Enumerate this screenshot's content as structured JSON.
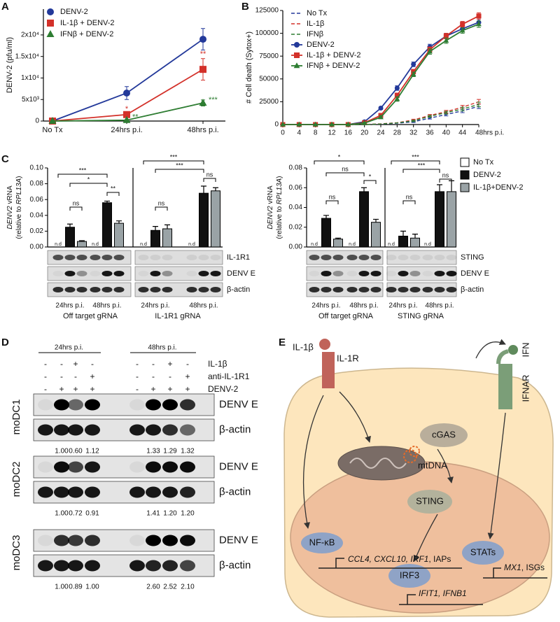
{
  "panel_labels": [
    "A",
    "B",
    "C",
    "D",
    "E"
  ],
  "chart_data": [
    {
      "type": "line",
      "y_label": "DENV-2 (pfu/ml)",
      "categories": [
        "No Tx",
        "24hrs p.i.",
        "48hrs p.i."
      ],
      "ylim": [
        0,
        26000
      ],
      "yticks": [
        0,
        {
          "value": 5000,
          "label": "5x10³"
        },
        {
          "value": 10000,
          "label": "1x10⁴"
        },
        {
          "value": 15000,
          "label": "1.5x10⁴"
        },
        {
          "value": 20000,
          "label": "2x10⁴"
        }
      ],
      "legend": "upper left",
      "series": [
        {
          "name": "DENV-2",
          "color": "#23399a",
          "marker": "circle",
          "values": [
            0,
            6500,
            19000
          ],
          "errors": [
            null,
            1500,
            2500
          ],
          "stars": [
            null,
            null,
            null
          ]
        },
        {
          "name": "IL-1β + DENV-2",
          "color": "#d3312a",
          "marker": "square",
          "values": [
            0,
            1500,
            12000
          ],
          "errors": [
            null,
            300,
            2500
          ],
          "stars": [
            null,
            "*",
            "**"
          ]
        },
        {
          "name": "IFNβ + DENV-2",
          "color": "#2e7d32",
          "marker": "triangle",
          "values": [
            0,
            200,
            4200
          ],
          "errors": [
            null,
            100,
            700
          ],
          "stars": [
            null,
            "**",
            "***"
          ]
        }
      ]
    },
    {
      "type": "line",
      "y_label": "# Cell death (Sytox+)",
      "x": [
        0,
        4,
        8,
        12,
        16,
        20,
        24,
        28,
        32,
        36,
        40,
        44,
        48
      ],
      "xlim": [
        0,
        48
      ],
      "xticks": [
        0,
        4,
        8,
        12,
        16,
        20,
        24,
        28,
        32,
        36,
        40,
        44,
        {
          "value": 48,
          "label": "48hrs p.i."
        }
      ],
      "ylim": [
        0,
        125000
      ],
      "yticks": [
        0,
        25000,
        50000,
        75000,
        100000,
        125000
      ],
      "legend": "upper left",
      "series": [
        {
          "name": "No Tx",
          "color": "#23399a",
          "dash": true,
          "values": [
            0,
            0,
            0,
            0,
            0,
            0,
            500,
            1500,
            3000,
            7000,
            11000,
            15000,
            20000
          ],
          "errors": [
            null,
            null,
            null,
            null,
            null,
            null,
            null,
            null,
            800,
            1000,
            1500,
            2000,
            2500
          ]
        },
        {
          "name": "IL-1β",
          "color": "#d3312a",
          "dash": true,
          "values": [
            0,
            0,
            0,
            0,
            0,
            0,
            800,
            2000,
            5000,
            10000,
            14000,
            19000,
            25000
          ],
          "errors": [
            null,
            null,
            null,
            null,
            null,
            null,
            null,
            null,
            800,
            1000,
            1500,
            2000,
            2500
          ]
        },
        {
          "name": "IFNβ",
          "color": "#2e7d32",
          "dash": true,
          "values": [
            0,
            0,
            0,
            0,
            0,
            0,
            600,
            1800,
            4000,
            9000,
            13000,
            17000,
            22000
          ],
          "errors": [
            null,
            null,
            null,
            null,
            null,
            null,
            null,
            null,
            800,
            1000,
            1500,
            2000,
            2500
          ]
        },
        {
          "name": "DENV-2",
          "color": "#23399a",
          "marker": "circle",
          "values": [
            0,
            0,
            0,
            0,
            0,
            3000,
            18000,
            40000,
            66000,
            85000,
            97000,
            105000,
            112000
          ],
          "errors": [
            null,
            null,
            null,
            null,
            null,
            1000,
            1500,
            2500,
            2500,
            3000,
            3000,
            3000,
            3500
          ]
        },
        {
          "name": "IL-1β + DENV-2",
          "color": "#d3312a",
          "marker": "square",
          "values": [
            0,
            0,
            0,
            0,
            0,
            2000,
            10000,
            32000,
            58000,
            82000,
            97000,
            110000,
            119000
          ],
          "errors": [
            null,
            null,
            null,
            null,
            null,
            1000,
            1500,
            2500,
            2500,
            3000,
            3000,
            3000,
            3500
          ]
        },
        {
          "name": "IFNβ + DENV-2",
          "color": "#2e7d32",
          "marker": "triangle",
          "values": [
            0,
            0,
            0,
            0,
            0,
            1500,
            8000,
            28000,
            55000,
            80000,
            92000,
            103000,
            110000
          ],
          "errors": [
            null,
            null,
            null,
            null,
            null,
            1000,
            1500,
            2500,
            2500,
            3000,
            3000,
            3000,
            3500
          ]
        }
      ]
    },
    {
      "type": "bar",
      "y_label": [
        [
          "DENV2",
          " vRNA"
        ],
        [
          "(relative to ",
          "RPL13A",
          ")"
        ]
      ],
      "categories": [
        "24hrs p.i.",
        "48hrs p.i.",
        "24hrs p.i.",
        "48hrs p.i."
      ],
      "groups": [
        "Off target gRNA",
        "IL-1R1 gRNA"
      ],
      "ylim": [
        0,
        0.1
      ],
      "yticks": [
        {
          "value": 0,
          "label": "0.00"
        },
        {
          "value": 0.02,
          "label": "0.02"
        },
        {
          "value": 0.04,
          "label": "0.04"
        },
        {
          "value": 0.06,
          "label": "0.06"
        },
        {
          "value": 0.08,
          "label": "0.08"
        },
        {
          "value": 0.1,
          "label": "0.10"
        }
      ],
      "series": [
        {
          "color": "#ffffff",
          "values": [
            null,
            null,
            null,
            null
          ],
          "value_labels": [
            "n.d",
            "n.d",
            "n.d",
            "n.d"
          ]
        },
        {
          "color": "#111111",
          "values": [
            0.025,
            0.056,
            0.021,
            0.068
          ],
          "errors": [
            0.004,
            0.002,
            0.005,
            0.009
          ]
        },
        {
          "color": "#9aa3a6",
          "values": [
            0.007,
            0.03,
            0.023,
            0.071
          ],
          "errors": [
            0.001,
            0.003,
            0.005,
            0.004
          ]
        }
      ],
      "brackets": [
        "***",
        "*",
        "**",
        "ns",
        "***",
        "***",
        "ns",
        "ns"
      ],
      "blot_rows": [
        "IL-1R1",
        "DENV E",
        "β-actin"
      ]
    },
    {
      "type": "bar",
      "y_label": [
        [
          "DENV2",
          " vRNA"
        ],
        [
          "(relative to ",
          "RPL13A",
          ")"
        ]
      ],
      "categories": [
        "24hrs p.i.",
        "48hrs p.i.",
        "24hrs p.i.",
        "48hrs p.i."
      ],
      "groups": [
        "Off target gRNA",
        "STING gRNA"
      ],
      "ylim": [
        0,
        0.08
      ],
      "yticks": [
        {
          "value": 0,
          "label": "0.00"
        },
        {
          "value": 0.02,
          "label": "0.02"
        },
        {
          "value": 0.04,
          "label": "0.04"
        },
        {
          "value": 0.06,
          "label": "0.06"
        },
        {
          "value": 0.08,
          "label": "0.08"
        }
      ],
      "legend": "right",
      "series": [
        {
          "name": "No Tx",
          "color": "#ffffff",
          "values": [
            null,
            null,
            null,
            null
          ],
          "value_labels": [
            "n.d",
            "n.d",
            "n.d",
            "n.d"
          ]
        },
        {
          "name": "DENV-2",
          "color": "#111111",
          "values": [
            0.029,
            0.056,
            0.011,
            0.056
          ],
          "errors": [
            0.003,
            0.004,
            0.005,
            0.007
          ]
        },
        {
          "name": "IL-1β+DENV-2",
          "color": "#9aa3a6",
          "values": [
            0.008,
            0.025,
            0.009,
            0.056
          ],
          "errors": [
            0.001,
            0.003,
            0.004,
            0.011
          ]
        }
      ],
      "brackets": [
        "*",
        "ns",
        "*",
        "ns",
        "***",
        "***",
        "ns",
        "ns"
      ],
      "blot_rows": [
        "STING",
        "DENV E",
        "β-actin"
      ]
    }
  ],
  "blot_d": {
    "time_labels": [
      "24hrs p.i.",
      "48hrs p.i."
    ],
    "treatments": [
      {
        "name": "IL-1β",
        "marks": [
          "-",
          "-",
          "+",
          "-",
          "-",
          "-",
          "+",
          "-"
        ]
      },
      {
        "name": "anti-IL-1R1",
        "marks": [
          "-",
          "-",
          "-",
          "+",
          "-",
          "-",
          "-",
          "+"
        ]
      },
      {
        "name": "DENV-2",
        "marks": [
          "-",
          "+",
          "+",
          "+",
          "-",
          "+",
          "+",
          "+"
        ]
      }
    ],
    "cells": [
      {
        "name": "moDC1",
        "rows": [
          "DENV E",
          "β-actin"
        ],
        "quant": [
          null,
          "1.00",
          "0.60",
          "1.12",
          null,
          "1.33",
          "1.29",
          "1.32"
        ]
      },
      {
        "name": "moDC2",
        "rows": [
          "DENV E",
          "β-actin"
        ],
        "quant": [
          null,
          "1.00",
          "0.72",
          "0.91",
          null,
          "1.41",
          "1.20",
          "1.20"
        ]
      },
      {
        "name": "moDC3",
        "rows": [
          "DENV E",
          "β-actin"
        ],
        "quant": [
          null,
          "1.00",
          "0.89",
          "1.00",
          null,
          "2.60",
          "2.52",
          "2.10"
        ]
      }
    ]
  },
  "diagram": {
    "il1b": "IL-1β",
    "il1r": "IL-1R",
    "ifn": "IFN",
    "ifnar": "IFNAR",
    "cgas": "cGAS",
    "mtdna": "mtDNA",
    "sting": "STING",
    "nfkb": "NF-κB",
    "stats": "STATs",
    "irf3": "IRF3",
    "genes_nfkb": [
      "CCL4, CXCL10, IRF1",
      ", IAPs"
    ],
    "genes_stats": [
      "MX1",
      ", ISGs"
    ],
    "genes_irf3": "IFIT1, IFNB1"
  }
}
